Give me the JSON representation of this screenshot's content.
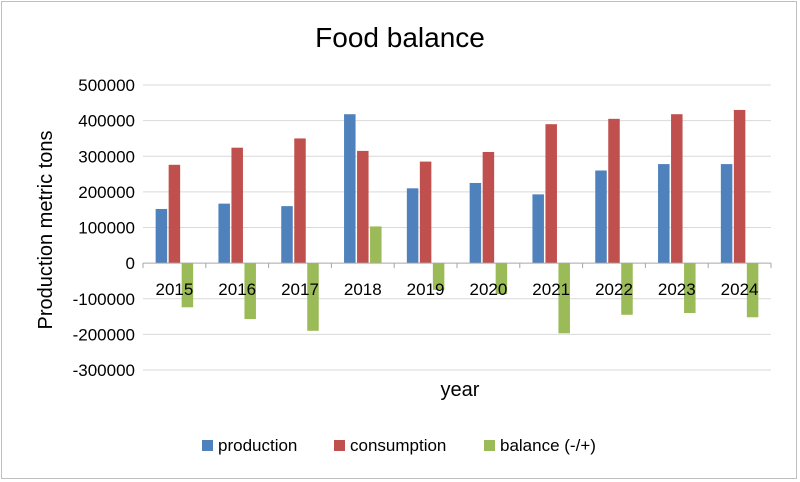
{
  "chart_data": {
    "type": "bar",
    "title": "Food balance",
    "xlabel": "year",
    "ylabel": "Production metric tons",
    "categories": [
      "2015",
      "2016",
      "2017",
      "2018",
      "2019",
      "2020",
      "2021",
      "2022",
      "2023",
      "2024"
    ],
    "series": [
      {
        "name": "production",
        "color": "#4F81BD",
        "values": [
          152000,
          167000,
          160000,
          418000,
          210000,
          225000,
          193000,
          260000,
          278000,
          278000
        ]
      },
      {
        "name": "consumption",
        "color": "#C0504D",
        "values": [
          276000,
          324000,
          350000,
          315000,
          285000,
          312000,
          390000,
          405000,
          418000,
          430000
        ]
      },
      {
        "name": "balance (-/+)",
        "color": "#9BBB59",
        "values": [
          -124000,
          -157000,
          -190000,
          103000,
          -75000,
          -87000,
          -197000,
          -145000,
          -140000,
          -152000
        ]
      }
    ],
    "ylim": [
      -300000,
      500000
    ],
    "yticks": [
      500000,
      400000,
      300000,
      200000,
      100000,
      0,
      -100000,
      -200000,
      -300000
    ],
    "ytick_labels": [
      "500000",
      "400000",
      "300000",
      "200000",
      "100000",
      "0",
      "-100000",
      "-200000",
      "-300000"
    ],
    "grid": true,
    "legend_position": "bottom"
  }
}
